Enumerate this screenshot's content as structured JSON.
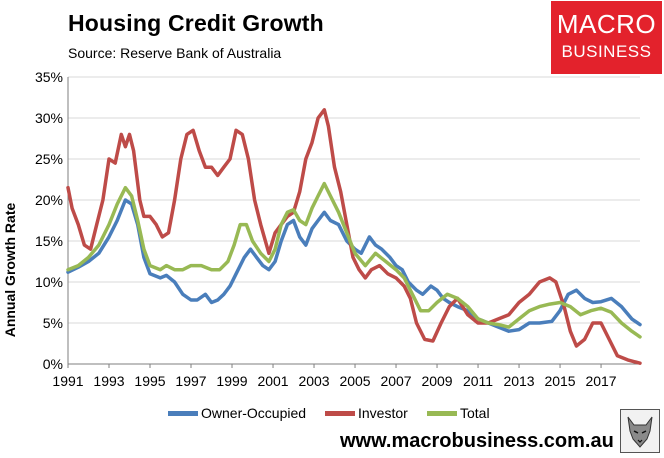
{
  "header": {
    "title": "Housing Credit Growth",
    "subtitle": "Source: Reserve Bank of Australia"
  },
  "logo": {
    "line1": "MACRO",
    "line2": "BUSINESS"
  },
  "footer": {
    "website": "www.macrobusiness.com.au"
  },
  "colors": {
    "owner": "#4a7ebb",
    "investor": "#be4b48",
    "total": "#98b954",
    "grid": "#d9d9d9",
    "logo_bg": "#e3222c"
  },
  "chart_data": {
    "type": "line",
    "title": "Housing Credit Growth",
    "xlabel": "",
    "ylabel": "Annual Growth Rate",
    "xlim": [
      1991,
      2018.9
    ],
    "ylim": [
      0,
      35
    ],
    "x_ticks": [
      "1991",
      "1993",
      "1995",
      "1997",
      "1999",
      "2001",
      "2003",
      "2005",
      "2007",
      "2009",
      "2011",
      "2013",
      "2015",
      "2017"
    ],
    "y_ticks": [
      "0%",
      "5%",
      "10%",
      "15%",
      "20%",
      "25%",
      "30%",
      "35%"
    ],
    "grid": true,
    "legend": "bottom",
    "series": [
      {
        "name": "Owner-Occupied",
        "color": "#4a7ebb",
        "points": [
          [
            1991,
            11.2
          ],
          [
            1991.5,
            11.8
          ],
          [
            1992,
            12.5
          ],
          [
            1992.5,
            13.5
          ],
          [
            1993,
            15.5
          ],
          [
            1993.4,
            17.5
          ],
          [
            1993.8,
            20
          ],
          [
            1994.1,
            19.5
          ],
          [
            1994.4,
            17
          ],
          [
            1994.7,
            13
          ],
          [
            1995,
            11
          ],
          [
            1995.5,
            10.5
          ],
          [
            1995.8,
            10.8
          ],
          [
            1996.2,
            10
          ],
          [
            1996.6,
            8.5
          ],
          [
            1997,
            7.8
          ],
          [
            1997.3,
            7.8
          ],
          [
            1997.7,
            8.5
          ],
          [
            1998,
            7.5
          ],
          [
            1998.3,
            7.8
          ],
          [
            1998.6,
            8.5
          ],
          [
            1998.9,
            9.5
          ],
          [
            1999.2,
            11
          ],
          [
            1999.6,
            13
          ],
          [
            1999.9,
            14
          ],
          [
            2000.2,
            13
          ],
          [
            2000.5,
            12
          ],
          [
            2000.8,
            11.5
          ],
          [
            2001.1,
            12.5
          ],
          [
            2001.4,
            15
          ],
          [
            2001.7,
            17
          ],
          [
            2002,
            17.5
          ],
          [
            2002.3,
            15.5
          ],
          [
            2002.6,
            14.5
          ],
          [
            2002.9,
            16.5
          ],
          [
            2003.2,
            17.5
          ],
          [
            2003.5,
            18.5
          ],
          [
            2003.8,
            17.5
          ],
          [
            2004.2,
            17
          ],
          [
            2004.6,
            15
          ],
          [
            2005,
            14
          ],
          [
            2005.3,
            13.5
          ],
          [
            2005.7,
            15.5
          ],
          [
            2006,
            14.5
          ],
          [
            2006.3,
            14
          ],
          [
            2006.7,
            13
          ],
          [
            2007,
            12
          ],
          [
            2007.3,
            11.5
          ],
          [
            2007.6,
            10
          ],
          [
            2008,
            9
          ],
          [
            2008.3,
            8.5
          ],
          [
            2008.7,
            9.5
          ],
          [
            2009,
            9
          ],
          [
            2009.3,
            8
          ],
          [
            2009.6,
            7.5
          ],
          [
            2010,
            7
          ],
          [
            2010.5,
            6.5
          ],
          [
            2011,
            5.5
          ],
          [
            2011.5,
            5
          ],
          [
            2012,
            4.5
          ],
          [
            2012.5,
            4
          ],
          [
            2013,
            4.2
          ],
          [
            2013.5,
            5
          ],
          [
            2014,
            5
          ],
          [
            2014.6,
            5.2
          ],
          [
            2015,
            6.5
          ],
          [
            2015.4,
            8.5
          ],
          [
            2015.8,
            9
          ],
          [
            2016.2,
            8
          ],
          [
            2016.6,
            7.5
          ],
          [
            2017,
            7.6
          ],
          [
            2017.5,
            8
          ],
          [
            2018,
            7
          ],
          [
            2018.5,
            5.5
          ],
          [
            2018.9,
            4.8
          ]
        ]
      },
      {
        "name": "Investor",
        "color": "#be4b48",
        "points": [
          [
            1991,
            21.5
          ],
          [
            1991.2,
            19
          ],
          [
            1991.5,
            17
          ],
          [
            1991.8,
            14.5
          ],
          [
            1992.1,
            14
          ],
          [
            1992.4,
            17
          ],
          [
            1992.7,
            20
          ],
          [
            1993,
            25
          ],
          [
            1993.3,
            24.5
          ],
          [
            1993.6,
            28
          ],
          [
            1993.8,
            26.5
          ],
          [
            1994,
            28
          ],
          [
            1994.2,
            26
          ],
          [
            1994.5,
            20
          ],
          [
            1994.7,
            18
          ],
          [
            1995,
            18
          ],
          [
            1995.3,
            17
          ],
          [
            1995.6,
            15.5
          ],
          [
            1995.9,
            16
          ],
          [
            1996.2,
            20
          ],
          [
            1996.5,
            25
          ],
          [
            1996.8,
            28
          ],
          [
            1997.1,
            28.5
          ],
          [
            1997.4,
            26
          ],
          [
            1997.7,
            24
          ],
          [
            1998,
            24
          ],
          [
            1998.3,
            23
          ],
          [
            1998.6,
            24
          ],
          [
            1998.9,
            25
          ],
          [
            1999.2,
            28.5
          ],
          [
            1999.5,
            28
          ],
          [
            1999.8,
            25
          ],
          [
            2000.1,
            20
          ],
          [
            2000.4,
            17
          ],
          [
            2000.8,
            13.5
          ],
          [
            2001.1,
            16
          ],
          [
            2001.4,
            17
          ],
          [
            2001.7,
            18
          ],
          [
            2002,
            18.5
          ],
          [
            2002.3,
            21
          ],
          [
            2002.6,
            25
          ],
          [
            2002.9,
            27
          ],
          [
            2003.2,
            30
          ],
          [
            2003.5,
            31
          ],
          [
            2003.7,
            29
          ],
          [
            2004,
            24
          ],
          [
            2004.3,
            21
          ],
          [
            2004.6,
            17
          ],
          [
            2004.9,
            13
          ],
          [
            2005.2,
            11.5
          ],
          [
            2005.5,
            10.5
          ],
          [
            2005.8,
            11.5
          ],
          [
            2006.2,
            12
          ],
          [
            2006.6,
            11
          ],
          [
            2007,
            10.5
          ],
          [
            2007.4,
            9.5
          ],
          [
            2007.7,
            8
          ],
          [
            2008,
            5
          ],
          [
            2008.4,
            3
          ],
          [
            2008.8,
            2.8
          ],
          [
            2009.2,
            5
          ],
          [
            2009.6,
            7
          ],
          [
            2010,
            8
          ],
          [
            2010.5,
            6
          ],
          [
            2011,
            5
          ],
          [
            2011.5,
            5
          ],
          [
            2012,
            5.5
          ],
          [
            2012.5,
            6
          ],
          [
            2013,
            7.5
          ],
          [
            2013.5,
            8.5
          ],
          [
            2014,
            10
          ],
          [
            2014.5,
            10.5
          ],
          [
            2014.8,
            10
          ],
          [
            2015.2,
            7
          ],
          [
            2015.5,
            4
          ],
          [
            2015.8,
            2.2
          ],
          [
            2016.2,
            3
          ],
          [
            2016.6,
            5
          ],
          [
            2017,
            5
          ],
          [
            2017.4,
            3
          ],
          [
            2017.8,
            1
          ],
          [
            2018.3,
            0.5
          ],
          [
            2018.9,
            0.1
          ]
        ]
      },
      {
        "name": "Total",
        "color": "#98b954",
        "points": [
          [
            1991,
            11.5
          ],
          [
            1991.5,
            12
          ],
          [
            1992,
            13
          ],
          [
            1992.5,
            14.5
          ],
          [
            1993,
            17
          ],
          [
            1993.4,
            19.5
          ],
          [
            1993.8,
            21.5
          ],
          [
            1994.1,
            20.5
          ],
          [
            1994.4,
            17.5
          ],
          [
            1994.7,
            14
          ],
          [
            1995,
            12
          ],
          [
            1995.5,
            11.5
          ],
          [
            1995.8,
            12
          ],
          [
            1996.2,
            11.5
          ],
          [
            1996.6,
            11.5
          ],
          [
            1997,
            12
          ],
          [
            1997.5,
            12
          ],
          [
            1998,
            11.5
          ],
          [
            1998.4,
            11.5
          ],
          [
            1998.8,
            12.5
          ],
          [
            1999.1,
            14.5
          ],
          [
            1999.4,
            17
          ],
          [
            1999.7,
            17
          ],
          [
            2000,
            15
          ],
          [
            2000.4,
            13.5
          ],
          [
            2000.8,
            12.5
          ],
          [
            2001.1,
            14
          ],
          [
            2001.4,
            17
          ],
          [
            2001.7,
            18.5
          ],
          [
            2002,
            18.8
          ],
          [
            2002.3,
            17.5
          ],
          [
            2002.6,
            17
          ],
          [
            2002.9,
            19
          ],
          [
            2003.2,
            20.5
          ],
          [
            2003.5,
            22
          ],
          [
            2003.8,
            20.5
          ],
          [
            2004.2,
            18.5
          ],
          [
            2004.6,
            16
          ],
          [
            2005,
            13.5
          ],
          [
            2005.5,
            12
          ],
          [
            2006,
            13.5
          ],
          [
            2006.5,
            12.5
          ],
          [
            2007,
            11.5
          ],
          [
            2007.4,
            10.5
          ],
          [
            2007.8,
            8.5
          ],
          [
            2008.2,
            6.5
          ],
          [
            2008.6,
            6.5
          ],
          [
            2009,
            7.5
          ],
          [
            2009.5,
            8.5
          ],
          [
            2010,
            8
          ],
          [
            2010.5,
            7
          ],
          [
            2011,
            5.5
          ],
          [
            2011.5,
            5
          ],
          [
            2012,
            4.8
          ],
          [
            2012.5,
            4.5
          ],
          [
            2013,
            5.5
          ],
          [
            2013.5,
            6.5
          ],
          [
            2014,
            7
          ],
          [
            2014.5,
            7.3
          ],
          [
            2015,
            7.5
          ],
          [
            2015.5,
            7
          ],
          [
            2016,
            6
          ],
          [
            2016.5,
            6.5
          ],
          [
            2017,
            6.8
          ],
          [
            2017.5,
            6.3
          ],
          [
            2018,
            5
          ],
          [
            2018.5,
            4
          ],
          [
            2018.9,
            3.3
          ]
        ]
      }
    ]
  }
}
